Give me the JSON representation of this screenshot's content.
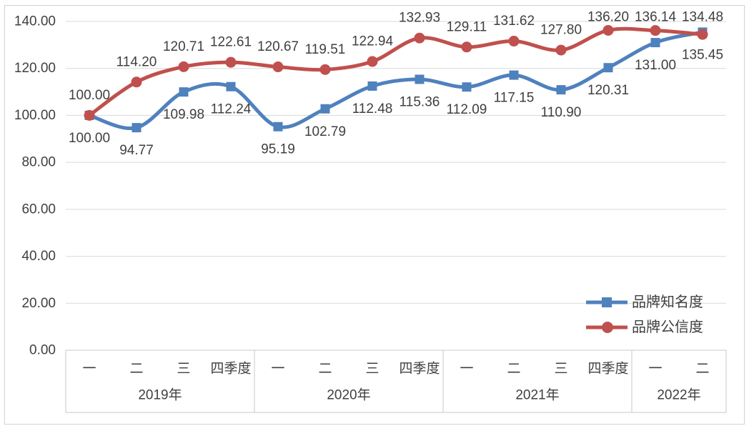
{
  "chart_data": {
    "type": "line",
    "title": "",
    "xlabel": "",
    "ylabel": "",
    "categories": [
      "一",
      "二",
      "三",
      "四季度",
      "一",
      "二",
      "三",
      "四季度",
      "一",
      "二",
      "三",
      "四季度",
      "一",
      "二"
    ],
    "year_groups": [
      {
        "label": "2019年",
        "span": 4
      },
      {
        "label": "2020年",
        "span": 4
      },
      {
        "label": "2021年",
        "span": 4
      },
      {
        "label": "2022年",
        "span": 2
      }
    ],
    "series": [
      {
        "name": "品牌知名度",
        "color": "#4F81BD",
        "marker": "square",
        "label_position": "below",
        "values": [
          100.0,
          94.77,
          109.98,
          112.24,
          95.19,
          102.79,
          112.48,
          115.36,
          112.09,
          117.15,
          110.9,
          120.31,
          131.0,
          135.45
        ]
      },
      {
        "name": "品牌公信度",
        "color": "#C0504D",
        "marker": "circle",
        "label_position": "above",
        "values": [
          100.0,
          114.2,
          120.71,
          122.61,
          120.67,
          119.51,
          122.94,
          132.93,
          129.11,
          131.62,
          127.8,
          136.2,
          136.14,
          134.48
        ]
      }
    ],
    "ylim": [
      0,
      140
    ],
    "ytick_labels": [
      "0.00",
      "20.00",
      "40.00",
      "60.00",
      "80.00",
      "100.00",
      "120.00",
      "140.00"
    ],
    "grid": true,
    "legend_position": "inside-right-lower",
    "colors": {
      "gridline": "#D9D9D9",
      "axis_border": "#C9C9C9",
      "label_text": "#3F3F3F",
      "outer_border": "#D2D2D2",
      "background": "#FFFFFF"
    }
  }
}
